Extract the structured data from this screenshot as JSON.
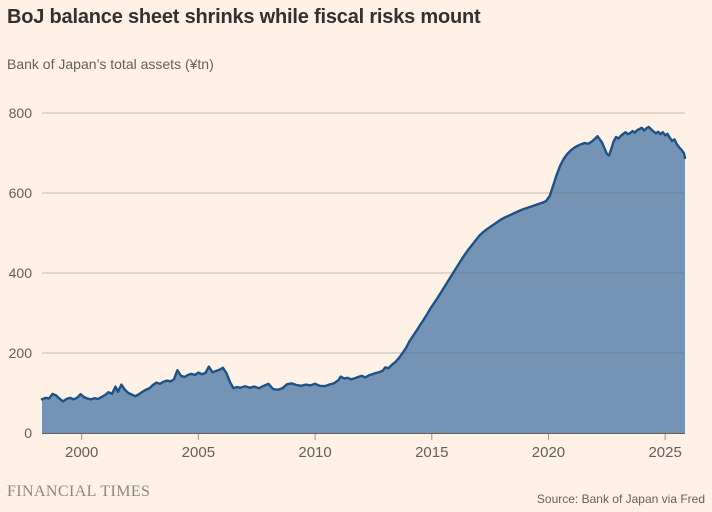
{
  "header": {
    "title": "BoJ balance sheet shrinks while fiscal risks mount",
    "subtitle": "Bank of Japan’s total assets (¥tn)"
  },
  "footer": {
    "brand": "FINANCIAL TIMES",
    "source": "Source: Bank of Japan via Fred"
  },
  "chart_data": {
    "type": "area",
    "title": "BoJ balance sheet shrinks while fiscal risks mount",
    "ylabel": "Bank of Japan’s total assets (¥tn)",
    "xlabel": "",
    "xlim": [
      1998.3,
      2025.85
    ],
    "ylim": [
      0,
      800
    ],
    "xticks": [
      2000,
      2005,
      2010,
      2015,
      2020,
      2025
    ],
    "yticks": [
      0,
      200,
      400,
      600,
      800
    ],
    "grid": "horizontal",
    "legend": "none",
    "colors": {
      "background": "#FFF1E5",
      "area_fill": "#7493B5",
      "line": "#1D5287",
      "gridline": "rgba(102,96,92,0.38)",
      "baseline": "#66605C",
      "tick_mark": "#9B948E",
      "axis_text": "#66605C",
      "title_text": "#33302E",
      "brand_text": "#8D8783"
    },
    "points": [
      [
        1998.3,
        84
      ],
      [
        1998.45,
        88
      ],
      [
        1998.6,
        86
      ],
      [
        1998.75,
        98
      ],
      [
        1998.9,
        94
      ],
      [
        1999.05,
        86
      ],
      [
        1999.2,
        79
      ],
      [
        1999.35,
        85
      ],
      [
        1999.5,
        88
      ],
      [
        1999.65,
        84
      ],
      [
        1999.8,
        88
      ],
      [
        1999.95,
        97
      ],
      [
        2000.1,
        90
      ],
      [
        2000.25,
        86
      ],
      [
        2000.4,
        84
      ],
      [
        2000.55,
        87
      ],
      [
        2000.7,
        85
      ],
      [
        2000.85,
        90
      ],
      [
        2001.0,
        95
      ],
      [
        2001.15,
        102
      ],
      [
        2001.3,
        98
      ],
      [
        2001.45,
        116
      ],
      [
        2001.55,
        103
      ],
      [
        2001.7,
        121
      ],
      [
        2001.85,
        108
      ],
      [
        2002.0,
        100
      ],
      [
        2002.15,
        96
      ],
      [
        2002.3,
        92
      ],
      [
        2002.45,
        97
      ],
      [
        2002.6,
        103
      ],
      [
        2002.75,
        108
      ],
      [
        2002.9,
        112
      ],
      [
        2003.05,
        120
      ],
      [
        2003.2,
        126
      ],
      [
        2003.35,
        123
      ],
      [
        2003.5,
        128
      ],
      [
        2003.65,
        131
      ],
      [
        2003.8,
        129
      ],
      [
        2003.95,
        134
      ],
      [
        2004.1,
        157
      ],
      [
        2004.25,
        143
      ],
      [
        2004.4,
        140
      ],
      [
        2004.55,
        145
      ],
      [
        2004.7,
        148
      ],
      [
        2004.85,
        145
      ],
      [
        2005.0,
        151
      ],
      [
        2005.15,
        147
      ],
      [
        2005.3,
        150
      ],
      [
        2005.45,
        166
      ],
      [
        2005.6,
        152
      ],
      [
        2005.75,
        155
      ],
      [
        2005.9,
        158
      ],
      [
        2006.05,
        163
      ],
      [
        2006.2,
        150
      ],
      [
        2006.35,
        128
      ],
      [
        2006.5,
        112
      ],
      [
        2006.65,
        115
      ],
      [
        2006.8,
        113
      ],
      [
        2007.0,
        117
      ],
      [
        2007.2,
        113
      ],
      [
        2007.4,
        116
      ],
      [
        2007.6,
        112
      ],
      [
        2007.8,
        118
      ],
      [
        2008.0,
        123
      ],
      [
        2008.2,
        110
      ],
      [
        2008.4,
        108
      ],
      [
        2008.6,
        112
      ],
      [
        2008.8,
        122
      ],
      [
        2009.0,
        124
      ],
      [
        2009.2,
        120
      ],
      [
        2009.4,
        118
      ],
      [
        2009.6,
        121
      ],
      [
        2009.8,
        119
      ],
      [
        2010.0,
        123
      ],
      [
        2010.2,
        118
      ],
      [
        2010.4,
        117
      ],
      [
        2010.6,
        121
      ],
      [
        2010.8,
        124
      ],
      [
        2011.0,
        132
      ],
      [
        2011.1,
        141
      ],
      [
        2011.25,
        136
      ],
      [
        2011.4,
        138
      ],
      [
        2011.55,
        134
      ],
      [
        2011.7,
        137
      ],
      [
        2011.85,
        140
      ],
      [
        2012.0,
        143
      ],
      [
        2012.15,
        139
      ],
      [
        2012.3,
        144
      ],
      [
        2012.45,
        147
      ],
      [
        2012.6,
        150
      ],
      [
        2012.75,
        152
      ],
      [
        2012.9,
        156
      ],
      [
        2013.0,
        164
      ],
      [
        2013.15,
        162
      ],
      [
        2013.3,
        171
      ],
      [
        2013.45,
        178
      ],
      [
        2013.6,
        188
      ],
      [
        2013.75,
        200
      ],
      [
        2013.9,
        213
      ],
      [
        2014.05,
        230
      ],
      [
        2014.2,
        243
      ],
      [
        2014.35,
        256
      ],
      [
        2014.5,
        270
      ],
      [
        2014.65,
        283
      ],
      [
        2014.8,
        297
      ],
      [
        2014.95,
        312
      ],
      [
        2015.1,
        325
      ],
      [
        2015.25,
        338
      ],
      [
        2015.4,
        352
      ],
      [
        2015.55,
        366
      ],
      [
        2015.7,
        380
      ],
      [
        2015.85,
        394
      ],
      [
        2016.0,
        408
      ],
      [
        2016.15,
        422
      ],
      [
        2016.3,
        436
      ],
      [
        2016.45,
        449
      ],
      [
        2016.6,
        461
      ],
      [
        2016.75,
        472
      ],
      [
        2016.9,
        483
      ],
      [
        2017.05,
        494
      ],
      [
        2017.2,
        502
      ],
      [
        2017.35,
        509
      ],
      [
        2017.5,
        515
      ],
      [
        2017.65,
        521
      ],
      [
        2017.8,
        527
      ],
      [
        2017.95,
        533
      ],
      [
        2018.1,
        538
      ],
      [
        2018.25,
        542
      ],
      [
        2018.4,
        546
      ],
      [
        2018.55,
        550
      ],
      [
        2018.7,
        554
      ],
      [
        2018.85,
        558
      ],
      [
        2019.0,
        561
      ],
      [
        2019.15,
        564
      ],
      [
        2019.3,
        567
      ],
      [
        2019.45,
        570
      ],
      [
        2019.6,
        573
      ],
      [
        2019.75,
        576
      ],
      [
        2019.9,
        580
      ],
      [
        2020.05,
        592
      ],
      [
        2020.2,
        618
      ],
      [
        2020.35,
        645
      ],
      [
        2020.5,
        668
      ],
      [
        2020.65,
        685
      ],
      [
        2020.8,
        697
      ],
      [
        2020.95,
        706
      ],
      [
        2021.1,
        713
      ],
      [
        2021.25,
        718
      ],
      [
        2021.4,
        722
      ],
      [
        2021.55,
        725
      ],
      [
        2021.7,
        723
      ],
      [
        2021.85,
        728
      ],
      [
        2022.0,
        736
      ],
      [
        2022.1,
        742
      ],
      [
        2022.2,
        734
      ],
      [
        2022.3,
        726
      ],
      [
        2022.4,
        712
      ],
      [
        2022.5,
        698
      ],
      [
        2022.6,
        694
      ],
      [
        2022.7,
        712
      ],
      [
        2022.8,
        730
      ],
      [
        2022.9,
        740
      ],
      [
        2023.0,
        736
      ],
      [
        2023.1,
        743
      ],
      [
        2023.2,
        748
      ],
      [
        2023.3,
        752
      ],
      [
        2023.4,
        747
      ],
      [
        2023.5,
        750
      ],
      [
        2023.6,
        755
      ],
      [
        2023.7,
        751
      ],
      [
        2023.8,
        757
      ],
      [
        2023.9,
        760
      ],
      [
        2024.0,
        763
      ],
      [
        2024.1,
        756
      ],
      [
        2024.2,
        762
      ],
      [
        2024.3,
        765
      ],
      [
        2024.4,
        759
      ],
      [
        2024.5,
        754
      ],
      [
        2024.6,
        749
      ],
      [
        2024.7,
        753
      ],
      [
        2024.8,
        747
      ],
      [
        2024.9,
        752
      ],
      [
        2025.0,
        744
      ],
      [
        2025.1,
        748
      ],
      [
        2025.2,
        738
      ],
      [
        2025.3,
        730
      ],
      [
        2025.4,
        734
      ],
      [
        2025.5,
        722
      ],
      [
        2025.6,
        714
      ],
      [
        2025.7,
        708
      ],
      [
        2025.8,
        700
      ],
      [
        2025.85,
        688
      ]
    ]
  }
}
